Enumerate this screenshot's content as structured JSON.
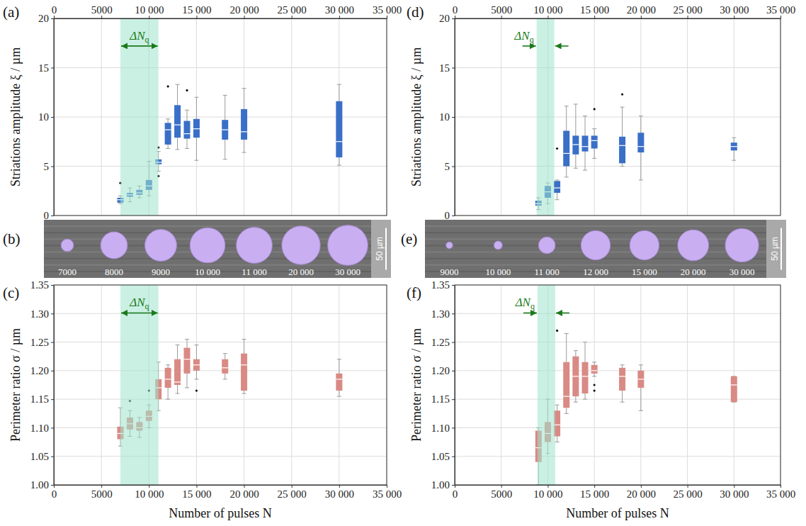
{
  "chart_data": [
    {
      "type": "box",
      "panel": "(a)",
      "ylabel": "Striations amplitude ξ / µm",
      "xlim": [
        0,
        35000
      ],
      "xticks": [
        0,
        5000,
        {
          "value": 10000,
          "label": "10 000"
        },
        {
          "value": 15000,
          "label": "15 000"
        },
        {
          "value": 20000,
          "label": "20 000"
        },
        {
          "value": 25000,
          "label": "25 000"
        },
        {
          "value": 30000,
          "label": "30 000"
        },
        {
          "value": 35000,
          "label": "35 000"
        }
      ],
      "ylim": [
        0,
        20
      ],
      "yticks": [
        0,
        5,
        10,
        15,
        20
      ],
      "grid": true,
      "color": "#3a6fc8",
      "x": [
        7000,
        8000,
        9000,
        10000,
        11000,
        12000,
        13000,
        14000,
        15000,
        18000,
        20000,
        30000
      ],
      "whisker_low": [
        1.2,
        1.4,
        1.8,
        2.0,
        4.5,
        6.8,
        6.7,
        6.8,
        5.6,
        5.7,
        6.4,
        5.1
      ],
      "q1": [
        1.3,
        1.9,
        2.1,
        2.6,
        5.2,
        7.2,
        7.9,
        7.8,
        7.9,
        7.7,
        7.7,
        5.9
      ],
      "median": [
        1.6,
        2.1,
        2.3,
        3.0,
        5.4,
        8.7,
        9.2,
        8.3,
        8.8,
        8.7,
        8.5,
        7.5
      ],
      "q3": [
        1.8,
        2.3,
        2.6,
        3.6,
        5.7,
        9.4,
        11.2,
        9.6,
        9.8,
        9.7,
        10.8,
        11.6
      ],
      "whisker_high": [
        2.0,
        2.8,
        3.0,
        5.5,
        6.5,
        9.8,
        13.3,
        10.7,
        12.0,
        12.2,
        12.9,
        13.3
      ],
      "outliers": [
        [
          3.3
        ],
        [],
        [],
        [],
        [
          6.9,
          4.0
        ],
        [
          13.1
        ],
        [],
        [
          12.7
        ],
        [],
        [],
        [],
        []
      ],
      "band": {
        "xlim": [
          7000,
          11000
        ],
        "label": "ΔN",
        "label_sub": "q",
        "color": "#9fe3cc"
      }
    },
    {
      "type": "image_strip",
      "panel": "(b)",
      "labels": [
        "7000",
        "8000",
        "9000",
        "10 000",
        "11 000",
        "20 000",
        "30 000"
      ],
      "hole_diameter": [
        15,
        32,
        38,
        42,
        43,
        46,
        48
      ],
      "scale_bar": {
        "value": 50,
        "label": "50 µm"
      }
    },
    {
      "type": "box",
      "panel": "(c)",
      "ylabel": "Perimeter ratio σ / µm",
      "xlabel": "Number of pulses N",
      "xlim": [
        0,
        35000
      ],
      "xticks": [
        0,
        5000,
        {
          "value": 10000,
          "label": "10 000"
        },
        {
          "value": 15000,
          "label": "15 000"
        },
        {
          "value": 20000,
          "label": "20 000"
        },
        {
          "value": 25000,
          "label": "25 000"
        },
        {
          "value": 30000,
          "label": "30 000"
        },
        {
          "value": 35000,
          "label": "35 000"
        }
      ],
      "ylim": [
        1,
        1.35
      ],
      "yticks": [
        {
          "value": 1,
          "label": "1.00"
        },
        1.05,
        {
          "value": 1.1,
          "label": "1.10"
        },
        1.15,
        {
          "value": 1.2,
          "label": "1.20"
        },
        1.25,
        {
          "value": 1.3,
          "label": "1.30"
        },
        1.35
      ],
      "grid": true,
      "color": "#d98a85",
      "x": [
        7000,
        8000,
        9000,
        10000,
        11000,
        12000,
        13000,
        14000,
        15000,
        18000,
        20000,
        30000
      ],
      "whisker_low": [
        1.068,
        1.085,
        1.083,
        1.1,
        1.13,
        1.15,
        1.16,
        1.17,
        1.185,
        1.185,
        1.16,
        1.155
      ],
      "q1": [
        1.08,
        1.097,
        1.095,
        1.112,
        1.15,
        1.17,
        1.175,
        1.195,
        1.2,
        1.195,
        1.165,
        1.165
      ],
      "median": [
        1.09,
        1.107,
        1.1,
        1.12,
        1.17,
        1.185,
        1.18,
        1.22,
        1.21,
        1.205,
        1.21,
        1.185
      ],
      "q3": [
        1.102,
        1.118,
        1.11,
        1.13,
        1.185,
        1.205,
        1.22,
        1.24,
        1.22,
        1.22,
        1.23,
        1.195
      ],
      "whisker_high": [
        1.135,
        1.13,
        1.118,
        1.14,
        1.215,
        1.21,
        1.245,
        1.255,
        1.245,
        1.23,
        1.255,
        1.22
      ],
      "outliers": [
        [],
        [
          1.147
        ],
        [],
        [
          1.165
        ],
        [],
        [],
        [],
        [],
        [
          1.165
        ],
        [],
        [],
        []
      ],
      "band": {
        "xlim": [
          7000,
          11000
        ],
        "label": "ΔN",
        "label_sub": "q",
        "color": "#9fe3cc"
      }
    },
    {
      "type": "box",
      "panel": "(d)",
      "ylabel": "Striations amplitude ξ / µm",
      "xlim": [
        0,
        35000
      ],
      "xticks": [
        0,
        5000,
        {
          "value": 10000,
          "label": "10 000"
        },
        {
          "value": 15000,
          "label": "15 000"
        },
        {
          "value": 20000,
          "label": "20 000"
        },
        {
          "value": 25000,
          "label": "25 000"
        },
        {
          "value": 30000,
          "label": "30 000"
        },
        {
          "value": 35000,
          "label": "35 000"
        }
      ],
      "ylim": [
        0,
        20
      ],
      "yticks": [
        0,
        5,
        10,
        15,
        20
      ],
      "grid": true,
      "color": "#3a6fc8",
      "x": [
        9000,
        10000,
        11000,
        12000,
        13000,
        14000,
        15000,
        18000,
        20000,
        30000
      ],
      "whisker_low": [
        0.6,
        1.2,
        1.6,
        3.9,
        4.8,
        4.6,
        5.8,
        5.0,
        3.6,
        5.6
      ],
      "q1": [
        1.0,
        1.8,
        2.3,
        5.0,
        6.2,
        6.5,
        6.8,
        5.3,
        6.4,
        6.6
      ],
      "median": [
        1.2,
        2.4,
        2.8,
        6.3,
        7.2,
        7.0,
        7.6,
        7.1,
        7.0,
        7.0
      ],
      "q3": [
        1.5,
        3.0,
        3.5,
        8.6,
        8.1,
        8.1,
        8.1,
        8.0,
        8.4,
        7.4
      ],
      "whisker_high": [
        1.8,
        3.3,
        3.6,
        11.1,
        11.3,
        10.1,
        8.8,
        11.0,
        10.1,
        7.9
      ],
      "outliers": [
        [],
        [],
        [
          6.8
        ],
        [],
        [],
        [],
        [
          10.8
        ],
        [
          12.3
        ],
        [],
        []
      ],
      "band": {
        "xlim": [
          8800,
          10700
        ],
        "label": "ΔN",
        "label_sub": "q",
        "color": "#9fe3cc"
      }
    },
    {
      "type": "image_strip",
      "panel": "(e)",
      "labels": [
        "9000",
        "10 000",
        "11 000",
        "12 000",
        "15 000",
        "20 000",
        "30 000"
      ],
      "hole_diameter": [
        8,
        10,
        20,
        35,
        35,
        37,
        40
      ],
      "scale_bar": {
        "value": 50,
        "label": "50 µm"
      }
    },
    {
      "type": "box",
      "panel": "(f)",
      "ylabel": "Perimeter ratio σ / µm",
      "xlabel": "Number of pulses N",
      "xlim": [
        0,
        35000
      ],
      "xticks": [
        0,
        5000,
        {
          "value": 10000,
          "label": "10 000"
        },
        {
          "value": 15000,
          "label": "15 000"
        },
        {
          "value": 20000,
          "label": "20 000"
        },
        {
          "value": 25000,
          "label": "25 000"
        },
        {
          "value": 30000,
          "label": "30 000"
        },
        {
          "value": 35000,
          "label": "35 000"
        }
      ],
      "ylim": [
        1,
        1.35
      ],
      "yticks": [
        {
          "value": 1,
          "label": "1.00"
        },
        1.05,
        {
          "value": 1.1,
          "label": "1.10"
        },
        1.15,
        {
          "value": 1.2,
          "label": "1.20"
        },
        1.25,
        {
          "value": 1.3,
          "label": "1.30"
        },
        1.35
      ],
      "grid": true,
      "color": "#d98a85",
      "x": [
        9000,
        10000,
        11000,
        12000,
        13000,
        14000,
        15000,
        18000,
        20000,
        30000
      ],
      "whisker_low": [
        1.0,
        1.055,
        1.075,
        1.125,
        1.145,
        1.15,
        1.19,
        1.145,
        1.13,
        1.145
      ],
      "q1": [
        1.04,
        1.075,
        1.085,
        1.135,
        1.155,
        1.16,
        1.195,
        1.165,
        1.17,
        1.145
      ],
      "median": [
        1.065,
        1.09,
        1.105,
        1.155,
        1.19,
        1.19,
        1.2,
        1.19,
        1.185,
        1.175
      ],
      "q3": [
        1.095,
        1.11,
        1.13,
        1.215,
        1.225,
        1.215,
        1.21,
        1.205,
        1.2,
        1.19
      ],
      "whisker_high": [
        1.1,
        1.15,
        1.14,
        1.265,
        1.235,
        1.25,
        1.215,
        1.21,
        1.21,
        1.19
      ],
      "outliers": [
        [],
        [],
        [
          1.27
        ],
        [],
        [],
        [],
        [
          1.175,
          1.165
        ],
        [],
        [],
        []
      ],
      "band": {
        "xlim": [
          8900,
          10800
        ],
        "label": "ΔN",
        "label_sub": "q",
        "color": "#9fe3cc"
      }
    }
  ]
}
